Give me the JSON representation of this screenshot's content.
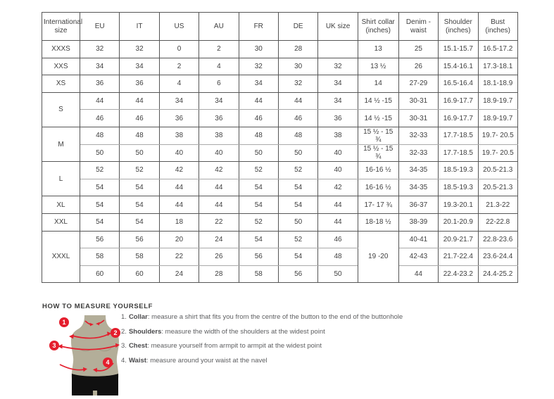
{
  "table": {
    "headers": [
      "International size",
      "EU",
      "IT",
      "US",
      "AU",
      "FR",
      "DE",
      "UK size",
      "Shirt collar (inches)",
      "Denim - waist",
      "Shoulder (inches)",
      "Bust (inches)"
    ],
    "groups": [
      {
        "size": "XXXS",
        "rows": [
          [
            "32",
            "32",
            "0",
            "2",
            "30",
            "28",
            "",
            "13",
            "25",
            "15.1-15.7",
            "16.5-17.2"
          ]
        ]
      },
      {
        "size": "XXS",
        "rows": [
          [
            "34",
            "34",
            "2",
            "4",
            "32",
            "30",
            "32",
            "13 ½",
            "26",
            "15.4-16.1",
            "17.3-18.1"
          ]
        ]
      },
      {
        "size": "XS",
        "rows": [
          [
            "36",
            "36",
            "4",
            "6",
            "34",
            "32",
            "34",
            "14",
            "27-29",
            "16.5-16.4",
            "18.1-18.9"
          ]
        ]
      },
      {
        "size": "S",
        "rows": [
          [
            "44",
            "44",
            "34",
            "34",
            "44",
            "44",
            "34",
            "14 ½ -15",
            "30-31",
            "16.9-17.7",
            "18.9-19.7"
          ],
          [
            "46",
            "46",
            "36",
            "36",
            "46",
            "46",
            "36",
            "14 ½ -15",
            "30-31",
            "16.9-17.7",
            "18.9-19.7"
          ]
        ]
      },
      {
        "size": "M",
        "rows": [
          [
            "48",
            "48",
            "38",
            "38",
            "48",
            "48",
            "38",
            "15 ½ - 15 ¾",
            "32-33",
            "17.7-18.5",
            "19.7- 20.5"
          ],
          [
            "50",
            "50",
            "40",
            "40",
            "50",
            "50",
            "40",
            "15 ½ - 15 ¾",
            "32-33",
            "17.7-18.5",
            "19.7- 20.5"
          ]
        ]
      },
      {
        "size": "L",
        "rows": [
          [
            "52",
            "52",
            "42",
            "42",
            "52",
            "52",
            "40",
            "16-16 ½",
            "34-35",
            "18.5-19.3",
            "20.5-21.3"
          ],
          [
            "54",
            "54",
            "44",
            "44",
            "54",
            "54",
            "42",
            "16-16 ½",
            "34-35",
            "18.5-19.3",
            "20.5-21.3"
          ]
        ]
      },
      {
        "size": "XL",
        "rows": [
          [
            "54",
            "54",
            "44",
            "44",
            "54",
            "54",
            "44",
            "17- 17 ¾",
            "36-37",
            "19.3-20.1",
            "21.3-22"
          ]
        ]
      },
      {
        "size": "XXL",
        "rows": [
          [
            "54",
            "54",
            "18",
            "22",
            "52",
            "50",
            "44",
            "18-18 ½",
            "38-39",
            "20.1-20.9",
            "22-22.8"
          ]
        ]
      },
      {
        "size": "XXXL",
        "rows": [
          [
            "56",
            "56",
            "20",
            "24",
            "54",
            "52",
            "46",
            {
              "v": "19 -20",
              "rowspan": 3
            },
            "40-41",
            "20.9-21.7",
            "22.8-23.6"
          ],
          [
            "58",
            "58",
            "22",
            "26",
            "56",
            "54",
            "48",
            null,
            "42-43",
            "21.7-22.4",
            "23.6-24.4"
          ],
          [
            "60",
            "60",
            "24",
            "28",
            "58",
            "56",
            "50",
            null,
            "44",
            "22.4-23.2",
            "24.4-25.2"
          ]
        ]
      }
    ]
  },
  "measure": {
    "title": "HOW TO MEASURE YOURSELF",
    "steps": [
      {
        "num": "1.",
        "label": "Collar",
        "text": ": measure a shirt that fits you from the centre of the button to the end of the buttonhole"
      },
      {
        "num": "2.",
        "label": "Shoulders",
        "text": ": measure the width of the shoulders at the widest point"
      },
      {
        "num": "3.",
        "label": "Chest",
        "text": ": measure yourself from armpit to armpit at the widest point"
      },
      {
        "num": "4.",
        "label": "Waist",
        "text": ": measure around your waist at the navel"
      }
    ],
    "figure_badges": [
      "1",
      "2",
      "3",
      "4"
    ]
  },
  "colors": {
    "accent_red": "#e41e2d",
    "torso": "#b3ae99",
    "shorts": "#101010",
    "border_dark": "#565656",
    "border_light": "#a9a9a9",
    "table_text": "#3f3f3f",
    "body_text": "#5d5e60"
  }
}
